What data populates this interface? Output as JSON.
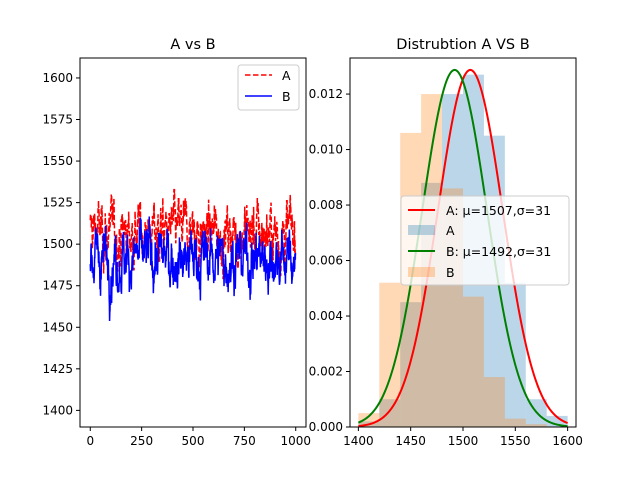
{
  "chart_data": [
    {
      "type": "line",
      "title": "A vs B",
      "xlabel": "",
      "ylabel": "",
      "xlim": [
        -50,
        1050
      ],
      "ylim": [
        1390,
        1612
      ],
      "xticks": [
        0,
        250,
        500,
        750,
        1000
      ],
      "yticks": [
        1400,
        1425,
        1450,
        1475,
        1500,
        1525,
        1550,
        1575,
        1600
      ],
      "n_points": 1000,
      "legend": "upper right",
      "series": [
        {
          "name": "A",
          "color": "#ff0000",
          "style": "dashed",
          "mean": 1507,
          "std": 31
        },
        {
          "name": "B",
          "color": "#0000ff",
          "style": "solid",
          "mean": 1492,
          "std": 31
        }
      ]
    },
    {
      "type": "bar",
      "title": "Distrubtion A VS B",
      "xlabel": "",
      "ylabel": "",
      "xlim": [
        1392,
        1608
      ],
      "ylim": [
        0,
        0.0133
      ],
      "xticks": [
        1400,
        1450,
        1500,
        1550,
        1600
      ],
      "yticks": [
        0.0,
        0.002,
        0.004,
        0.006,
        0.008,
        0.01,
        0.012
      ],
      "ytick_labels": [
        "0.000",
        "0.002",
        "0.004",
        "0.006",
        "0.008",
        "0.010",
        "0.012"
      ],
      "legend": "center right",
      "histograms": [
        {
          "name": "A",
          "color": "#1f77b4",
          "alpha": 0.3,
          "bin_edges": [
            1400,
            1420,
            1440,
            1460,
            1480,
            1500,
            1520,
            1540,
            1560,
            1580,
            1600
          ],
          "density": [
            0.0002,
            0.001,
            0.0045,
            0.0088,
            0.012,
            0.0127,
            0.0105,
            0.0052,
            0.001,
            0.0004
          ]
        },
        {
          "name": "B",
          "color": "#ff7f0e",
          "alpha": 0.3,
          "bin_edges": [
            1400,
            1420,
            1440,
            1460,
            1480,
            1500,
            1520,
            1540,
            1560,
            1580,
            1600
          ],
          "density": [
            0.0005,
            0.0052,
            0.0106,
            0.012,
            0.0086,
            0.0047,
            0.0018,
            0.0003,
            0.0001,
            0.0
          ]
        }
      ],
      "curves": [
        {
          "name": "A: μ=1507,σ=31",
          "color": "#ff0000",
          "mean": 1507,
          "std": 31
        },
        {
          "name": "B: μ=1492,σ=31",
          "color": "#008000",
          "mean": 1492,
          "std": 31
        }
      ],
      "legend_entries": [
        {
          "label": "A: μ=1507,σ=31",
          "kind": "line",
          "color": "#ff0000"
        },
        {
          "label": "A",
          "kind": "patch",
          "color": "#1f77b4"
        },
        {
          "label": "B: μ=1492,σ=31",
          "kind": "line",
          "color": "#008000"
        },
        {
          "label": "B",
          "kind": "patch",
          "color": "#ff7f0e"
        }
      ]
    }
  ]
}
